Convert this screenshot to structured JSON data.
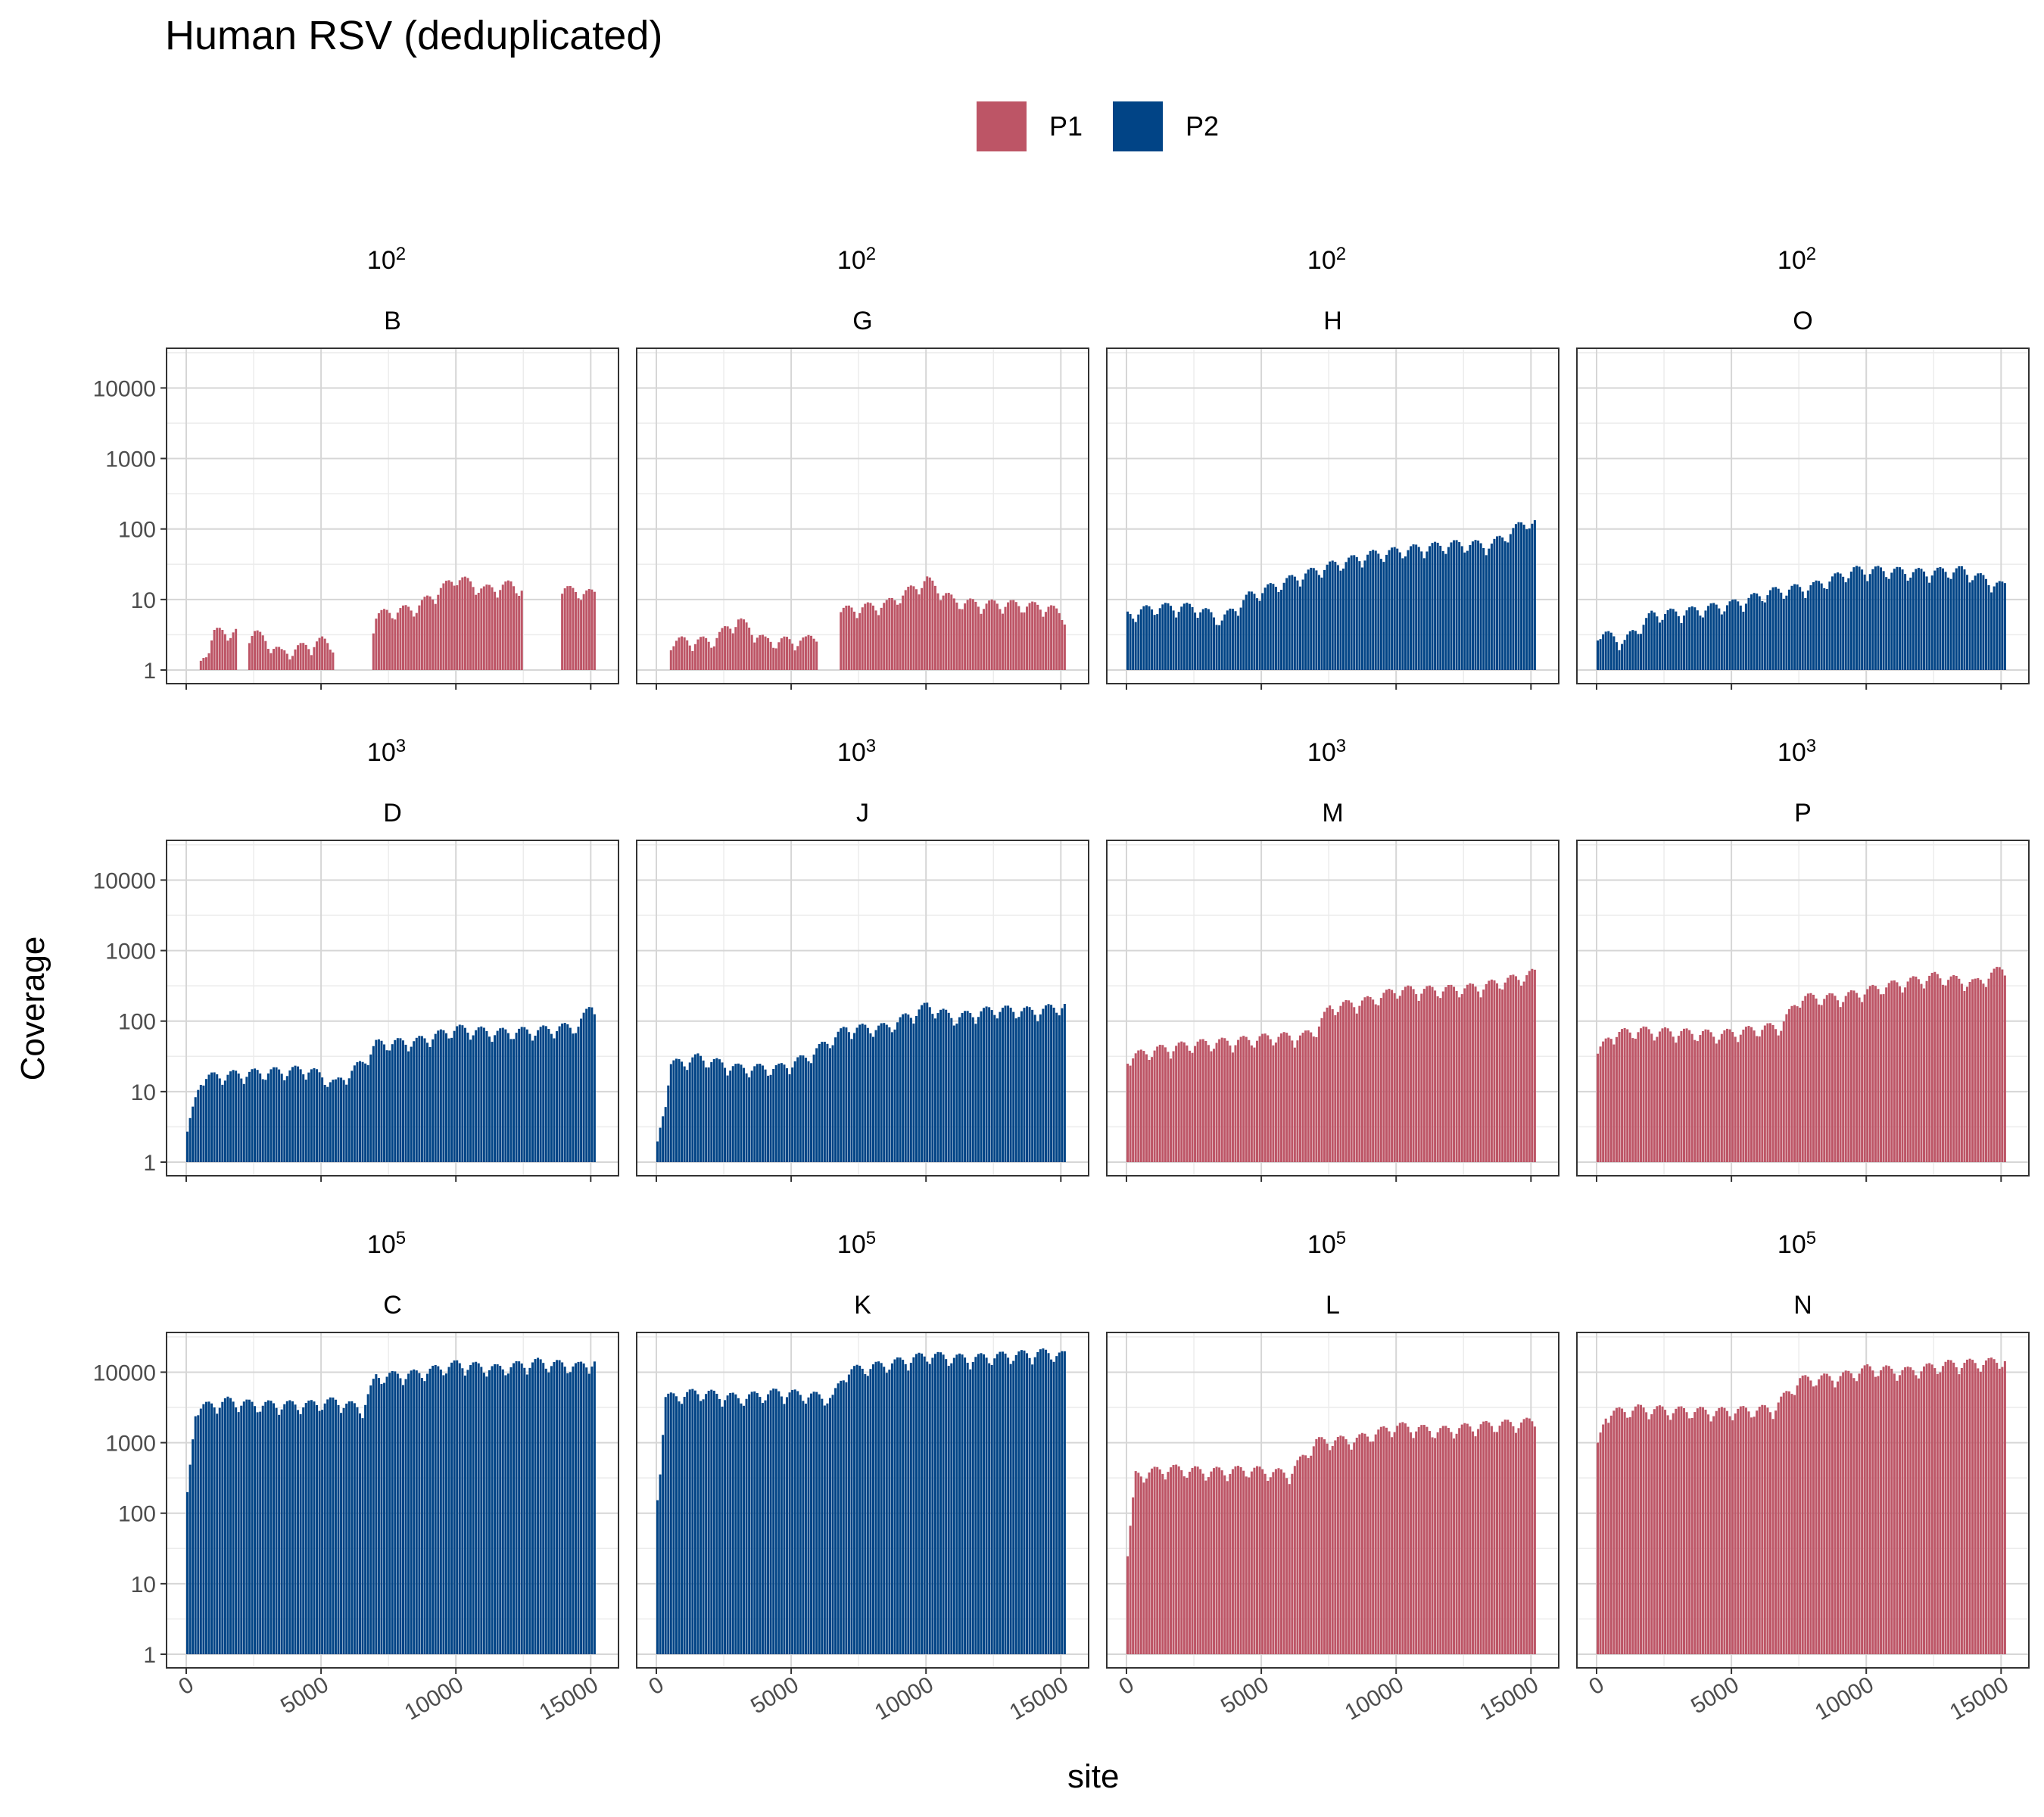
{
  "chart_data": {
    "type": "area",
    "title": "Human RSV (deduplicated)",
    "xlabel": "site",
    "ylabel": "Coverage",
    "yscale": "log10",
    "ylim": [
      1,
      30000
    ],
    "xlim": [
      0,
      15300
    ],
    "x_ticks": [
      "0",
      "5000",
      "10000",
      "15000"
    ],
    "y_ticks": [
      "1",
      "10",
      "100",
      "1000",
      "10000"
    ],
    "grid": true,
    "legend_position": "top",
    "series_colors": {
      "P1": "#bd5566",
      "P2": "#014486"
    },
    "legend": [
      {
        "name": "P1",
        "color": "#bd5566"
      },
      {
        "name": "P2",
        "color": "#014486"
      }
    ],
    "facets": [
      {
        "dilution": "10",
        "exp": "2",
        "sample": "B",
        "series": "P1",
        "coverage_profile": [
          [
            0,
            0
          ],
          [
            1000,
            4
          ],
          [
            2500,
            4
          ],
          [
            3500,
            2
          ],
          [
            5000,
            3
          ],
          [
            6500,
            2
          ],
          [
            7000,
            7
          ],
          [
            8500,
            9
          ],
          [
            10000,
            24
          ],
          [
            11000,
            16
          ],
          [
            12000,
            19
          ],
          [
            13000,
            13
          ],
          [
            14000,
            16
          ],
          [
            15000,
            14
          ]
        ],
        "zero_ranges": [
          [
            1900,
            2200
          ],
          [
            5500,
            6800
          ],
          [
            12500,
            13800
          ]
        ]
      },
      {
        "dilution": "10",
        "exp": "2",
        "sample": "G",
        "series": "P1",
        "coverage_profile": [
          [
            0,
            0
          ],
          [
            500,
            3
          ],
          [
            2000,
            3
          ],
          [
            3000,
            6
          ],
          [
            4000,
            3
          ],
          [
            5500,
            3
          ],
          [
            6800,
            8
          ],
          [
            8500,
            10
          ],
          [
            10000,
            22
          ],
          [
            11000,
            11
          ],
          [
            12000,
            10
          ],
          [
            13000,
            10
          ],
          [
            14500,
            9
          ],
          [
            15000,
            7
          ]
        ],
        "zero_ranges": [
          [
            0,
            400
          ],
          [
            6000,
            6700
          ]
        ]
      },
      {
        "dilution": "10",
        "exp": "2",
        "sample": "H",
        "series": "P2",
        "coverage_profile": [
          [
            0,
            7
          ],
          [
            1000,
            9
          ],
          [
            2500,
            9
          ],
          [
            3500,
            6
          ],
          [
            4500,
            13
          ],
          [
            6000,
            22
          ],
          [
            7500,
            35
          ],
          [
            9000,
            50
          ],
          [
            10500,
            60
          ],
          [
            12000,
            70
          ],
          [
            13500,
            70
          ],
          [
            14800,
            150
          ],
          [
            15000,
            140
          ]
        ],
        "zero_ranges": []
      },
      {
        "dilution": "10",
        "exp": "2",
        "sample": "O",
        "series": "P2",
        "coverage_profile": [
          [
            0,
            4
          ],
          [
            1000,
            3
          ],
          [
            2000,
            7
          ],
          [
            3500,
            8
          ],
          [
            5000,
            10
          ],
          [
            6500,
            15
          ],
          [
            8000,
            18
          ],
          [
            9500,
            30
          ],
          [
            10500,
            30
          ],
          [
            12000,
            28
          ],
          [
            13500,
            30
          ],
          [
            15000,
            18
          ]
        ],
        "zero_ranges": []
      },
      {
        "dilution": "10",
        "exp": "3",
        "sample": "D",
        "series": "P2",
        "coverage_profile": [
          [
            0,
            3
          ],
          [
            500,
            18
          ],
          [
            1500,
            20
          ],
          [
            3000,
            22
          ],
          [
            4500,
            24
          ],
          [
            5500,
            15
          ],
          [
            6500,
            30
          ],
          [
            7000,
            55
          ],
          [
            8500,
            60
          ],
          [
            10000,
            90
          ],
          [
            11500,
            80
          ],
          [
            13000,
            85
          ],
          [
            14500,
            100
          ],
          [
            15000,
            200
          ]
        ],
        "zero_ranges": []
      },
      {
        "dilution": "10",
        "exp": "3",
        "sample": "J",
        "series": "P2",
        "coverage_profile": [
          [
            0,
            2
          ],
          [
            500,
            28
          ],
          [
            1500,
            35
          ],
          [
            3000,
            25
          ],
          [
            4500,
            25
          ],
          [
            5500,
            35
          ],
          [
            7000,
            90
          ],
          [
            8500,
            95
          ],
          [
            10000,
            190
          ],
          [
            11000,
            130
          ],
          [
            12500,
            170
          ],
          [
            14000,
            160
          ],
          [
            15000,
            190
          ]
        ],
        "zero_ranges": []
      },
      {
        "dilution": "10",
        "exp": "3",
        "sample": "M",
        "series": "P1",
        "coverage_profile": [
          [
            0,
            35
          ],
          [
            1000,
            45
          ],
          [
            2500,
            55
          ],
          [
            4000,
            60
          ],
          [
            5500,
            70
          ],
          [
            6500,
            70
          ],
          [
            7000,
            90
          ],
          [
            7500,
            180
          ],
          [
            9000,
            230
          ],
          [
            10000,
            320
          ],
          [
            11500,
            320
          ],
          [
            13000,
            350
          ],
          [
            14500,
            480
          ],
          [
            15000,
            550
          ]
        ],
        "zero_ranges": []
      },
      {
        "dilution": "10",
        "exp": "3",
        "sample": "P",
        "series": "P1",
        "coverage_profile": [
          [
            0,
            40
          ],
          [
            500,
            75
          ],
          [
            1500,
            85
          ],
          [
            3000,
            80
          ],
          [
            4500,
            75
          ],
          [
            6000,
            90
          ],
          [
            6800,
            100
          ],
          [
            7500,
            250
          ],
          [
            9000,
            250
          ],
          [
            10500,
            350
          ],
          [
            12500,
            500
          ],
          [
            14000,
            400
          ],
          [
            15000,
            650
          ]
        ],
        "zero_ranges": []
      },
      {
        "dilution": "10",
        "exp": "5",
        "sample": "C",
        "series": "P2",
        "coverage_profile": [
          [
            0,
            200
          ],
          [
            300,
            3500
          ],
          [
            1500,
            4500
          ],
          [
            2500,
            4000
          ],
          [
            4500,
            4000
          ],
          [
            5500,
            4500
          ],
          [
            6500,
            3500
          ],
          [
            7000,
            10000
          ],
          [
            8500,
            11000
          ],
          [
            10000,
            15000
          ],
          [
            11500,
            13000
          ],
          [
            13000,
            16000
          ],
          [
            14500,
            14000
          ],
          [
            15000,
            16000
          ]
        ],
        "zero_ranges": []
      },
      {
        "dilution": "10",
        "exp": "5",
        "sample": "K",
        "series": "P2",
        "coverage_profile": [
          [
            0,
            200
          ],
          [
            300,
            5000
          ],
          [
            1500,
            6000
          ],
          [
            3000,
            5000
          ],
          [
            4500,
            6000
          ],
          [
            6500,
            5000
          ],
          [
            7000,
            12000
          ],
          [
            8500,
            15000
          ],
          [
            10000,
            20000
          ],
          [
            11500,
            18000
          ],
          [
            13000,
            20000
          ],
          [
            14500,
            22000
          ],
          [
            15000,
            20000
          ]
        ],
        "zero_ranges": []
      },
      {
        "dilution": "10",
        "exp": "5",
        "sample": "L",
        "series": "P1",
        "coverage_profile": [
          [
            0,
            30
          ],
          [
            300,
            400
          ],
          [
            1500,
            500
          ],
          [
            3000,
            450
          ],
          [
            4500,
            480
          ],
          [
            6000,
            420
          ],
          [
            7000,
            1200
          ],
          [
            8500,
            1300
          ],
          [
            10000,
            2000
          ],
          [
            11500,
            1700
          ],
          [
            13000,
            2000
          ],
          [
            14500,
            2200
          ],
          [
            15000,
            2300
          ]
        ],
        "zero_ranges": []
      },
      {
        "dilution": "10",
        "exp": "5",
        "sample": "N",
        "series": "P1",
        "coverage_profile": [
          [
            0,
            1000
          ],
          [
            300,
            3000
          ],
          [
            1500,
            3500
          ],
          [
            3000,
            3300
          ],
          [
            4500,
            3200
          ],
          [
            6500,
            3500
          ],
          [
            7500,
            9000
          ],
          [
            9000,
            10000
          ],
          [
            10000,
            13000
          ],
          [
            11500,
            12000
          ],
          [
            13000,
            15000
          ],
          [
            14500,
            16000
          ],
          [
            15000,
            17000
          ]
        ],
        "zero_ranges": []
      }
    ]
  }
}
